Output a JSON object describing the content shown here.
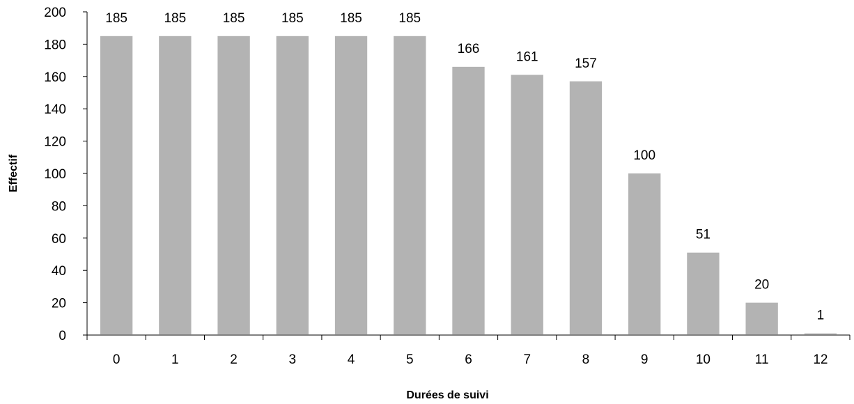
{
  "chart_data": {
    "type": "bar",
    "title": "",
    "xlabel": "Durées de suivi",
    "ylabel": "Effectif",
    "categories": [
      "0",
      "1",
      "2",
      "3",
      "4",
      "5",
      "6",
      "7",
      "8",
      "9",
      "10",
      "11",
      "12"
    ],
    "values": [
      185,
      185,
      185,
      185,
      185,
      185,
      166,
      161,
      157,
      100,
      51,
      20,
      1
    ],
    "data_labels": [
      "185",
      "185",
      "185",
      "185",
      "185",
      "185",
      "166",
      "161",
      "157",
      "100",
      "51",
      "20",
      "1"
    ],
    "ylim": [
      0,
      200
    ],
    "yticks": [
      "0",
      "20",
      "40",
      "60",
      "80",
      "100",
      "120",
      "140",
      "160",
      "180",
      "200"
    ],
    "grid": false,
    "legend": "none",
    "bar_color": "#b3b3b3"
  }
}
